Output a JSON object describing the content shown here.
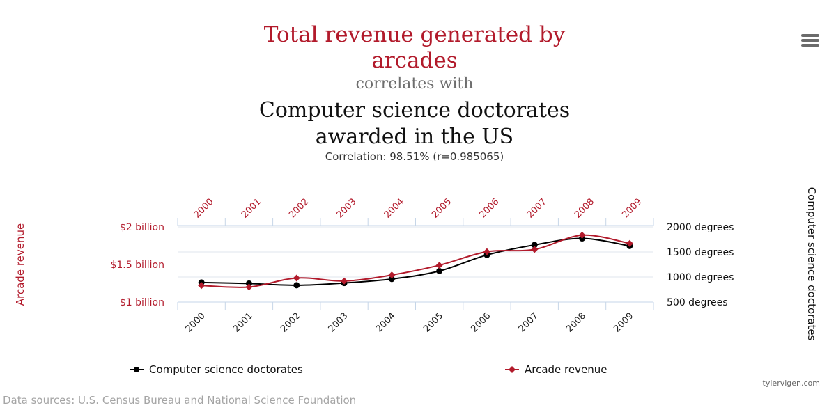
{
  "header": {
    "title_line1": "Total revenue generated by arcades",
    "connector": "correlates with",
    "title_line2": "Computer science doctorates awarded in the US",
    "correlation": "Correlation: 98.51% (r=0.985065)"
  },
  "footer": {
    "credit": "tylervigen.com",
    "sources": "Data sources: U.S. Census Bureau and National Science Foundation"
  },
  "colors": {
    "arcade": "#b21a2b",
    "doctorates": "#000000",
    "axis": "#c6d6e8"
  },
  "icons": {
    "menu": "hamburger-menu-icon"
  },
  "chart_data": {
    "type": "line",
    "x": [
      "2000",
      "2001",
      "2002",
      "2003",
      "2004",
      "2005",
      "2006",
      "2007",
      "2008",
      "2009"
    ],
    "series": [
      {
        "name": "Computer science doctorates",
        "axis": "right",
        "color": "#000000",
        "values": [
          890,
          870,
          835,
          880,
          960,
          1120,
          1440,
          1640,
          1770,
          1620
        ]
      },
      {
        "name": "Arcade revenue",
        "axis": "left",
        "color": "#b21a2b",
        "values": [
          1.22,
          1.2,
          1.32,
          1.28,
          1.36,
          1.49,
          1.67,
          1.7,
          1.89,
          1.78
        ]
      }
    ],
    "left_axis": {
      "label": "Arcade revenue",
      "ticks": [
        {
          "value": 1.0,
          "label": "$1 billion"
        },
        {
          "value": 1.5,
          "label": "$1.5 billion"
        },
        {
          "value": 2.0,
          "label": "$2 billion"
        }
      ],
      "range": [
        1.0,
        2.0
      ]
    },
    "right_axis": {
      "label": "Computer science doctorates",
      "ticks": [
        {
          "value": 500,
          "label": "500 degrees"
        },
        {
          "value": 1000,
          "label": "1000 degrees"
        },
        {
          "value": 1500,
          "label": "1500 degrees"
        },
        {
          "value": 2000,
          "label": "2000 degrees"
        }
      ],
      "range": [
        500,
        2000
      ]
    },
    "top_axis_labels": [
      "2000",
      "2001",
      "2002",
      "2003",
      "2004",
      "2005",
      "2006",
      "2007",
      "2008",
      "2009"
    ],
    "legend": {
      "placement": "bottom",
      "items": [
        "Computer science doctorates",
        "Arcade revenue"
      ]
    },
    "grid": true
  }
}
